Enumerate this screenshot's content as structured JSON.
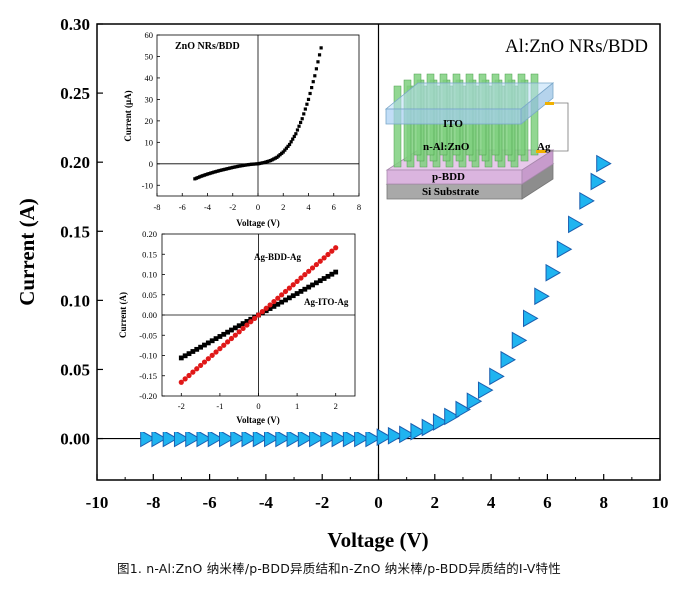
{
  "caption": "图1. n-Al:ZnO 纳米棒/p-BDD异质结和n-ZnO 纳米棒/p-BDD异质结的I-V特性",
  "colors": {
    "main_marker": "#1fb4f0",
    "main_edge": "#1a5fb0",
    "inset_black": "#000000",
    "inset_red": "#e01818"
  },
  "schematic": {
    "ito": "ITO",
    "nrs": "n-Al:ZnO",
    "ag": "Ag",
    "pbdd": "p-BDD",
    "substrate": "Si Substrate"
  },
  "chart_data": [
    {
      "type": "scatter",
      "title": "Al:ZnO NRs/BDD",
      "xlabel": "Voltage (V)",
      "ylabel": "Current (A)",
      "xlim": [
        -10,
        10
      ],
      "ylim": [
        -0.03,
        0.3
      ],
      "xticks": [
        -10,
        -8,
        -6,
        -4,
        -2,
        0,
        2,
        4,
        6,
        8,
        10
      ],
      "xtick_labels": [
        "-10",
        "-8",
        "-6",
        "-4",
        "-2",
        "0",
        "2",
        "4",
        "6",
        "8",
        "10"
      ],
      "yticks": [
        0,
        0.05,
        0.1,
        0.15,
        0.2,
        0.25,
        0.3
      ],
      "ytick_labels": [
        "0.00",
        "0.05",
        "0.10",
        "0.15",
        "0.20",
        "0.25",
        "0.30"
      ],
      "marker": "triangle-right",
      "x_range": [
        -8.2,
        8.0
      ],
      "series": [
        {
          "name": "Al:ZnO NRs/BDD",
          "x": [
            -8.2,
            -7.8,
            -7.4,
            -7.0,
            -6.6,
            -6.2,
            -5.8,
            -5.4,
            -5.0,
            -4.6,
            -4.2,
            -3.8,
            -3.4,
            -3.0,
            -2.6,
            -2.2,
            -1.8,
            -1.4,
            -1.0,
            -0.6,
            -0.2,
            0.2,
            0.6,
            1.0,
            1.4,
            1.8,
            2.2,
            2.6,
            3.0,
            3.4,
            3.8,
            4.2,
            4.6,
            5.0,
            5.4,
            5.8,
            6.2,
            6.6,
            7.0,
            7.4,
            7.8,
            8.0
          ],
          "y": [
            0,
            0,
            0,
            0,
            0,
            0,
            0,
            0,
            0,
            0,
            0,
            0,
            0,
            0,
            0,
            0,
            0,
            0,
            0,
            0,
            0,
            0.001,
            0.002,
            0.003,
            0.005,
            0.008,
            0.012,
            0.016,
            0.021,
            0.027,
            0.035,
            0.045,
            0.057,
            0.071,
            0.087,
            0.103,
            0.12,
            0.137,
            0.155,
            0.172,
            0.186,
            0.199
          ]
        }
      ]
    },
    {
      "type": "scatter",
      "title": "ZnO NRs/BDD",
      "xlabel": "Voltage (V)",
      "ylabel": "Current (μA)",
      "xlim": [
        -8,
        8
      ],
      "ylim": [
        -15,
        60
      ],
      "xticks": [
        -8,
        -6,
        -4,
        -2,
        0,
        2,
        4,
        6,
        8
      ],
      "xtick_labels": [
        "-8",
        "-6",
        "-4",
        "-2",
        "0",
        "2",
        "4",
        "6",
        "8"
      ],
      "yticks": [
        -10,
        0,
        10,
        20,
        30,
        40,
        50,
        60
      ],
      "ytick_labels": [
        "-10",
        "0",
        "10",
        "20",
        "30",
        "40",
        "50",
        "60"
      ],
      "series": [
        {
          "name": "ZnO NRs/BDD",
          "x": [
            -5.0,
            -4.5,
            -4.0,
            -3.5,
            -3.0,
            -2.5,
            -2.0,
            -1.5,
            -1.0,
            -0.5,
            0.0,
            0.5,
            1.0,
            1.5,
            2.0,
            2.5,
            3.0,
            3.5,
            4.0,
            4.5,
            5.0
          ],
          "y": [
            -7.0,
            -5.8,
            -4.8,
            -3.9,
            -3.1,
            -2.4,
            -1.7,
            -1.1,
            -0.6,
            -0.2,
            0.0,
            0.6,
            1.5,
            3.0,
            5.5,
            9.0,
            14.0,
            21.0,
            30.0,
            41.0,
            54.0
          ]
        }
      ]
    },
    {
      "type": "scatter",
      "title": "",
      "xlabel": "Voltage (V)",
      "ylabel": "Current (A)",
      "xlim": [
        -2.5,
        2.5
      ],
      "ylim": [
        -0.2,
        0.2
      ],
      "xticks": [
        -2,
        -1,
        0,
        1,
        2
      ],
      "xtick_labels": [
        "-2",
        "-1",
        "0",
        "1",
        "2"
      ],
      "yticks": [
        -0.2,
        -0.15,
        -0.1,
        -0.05,
        0.0,
        0.05,
        0.1,
        0.15,
        0.2
      ],
      "ytick_labels": [
        "-0.20",
        "-0.15",
        "-0.10",
        "-0.05",
        "0.00",
        "0.05",
        "0.10",
        "0.15",
        "0.20"
      ],
      "x_range": [
        -2,
        2
      ],
      "series": [
        {
          "name": "Ag-BDD-Ag",
          "color": "red",
          "slope": 0.083
        },
        {
          "name": "Ag-ITO-Ag",
          "color": "black",
          "slope": 0.053
        }
      ]
    }
  ]
}
